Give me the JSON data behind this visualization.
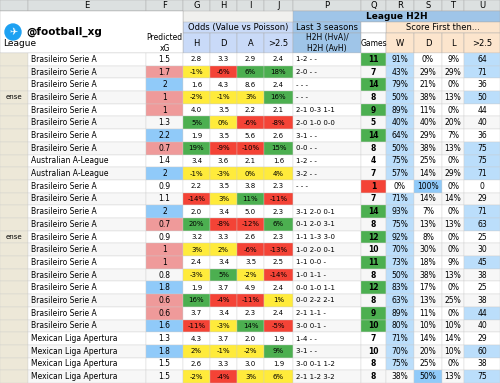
{
  "rows": [
    {
      "left_label": "",
      "league": "Brasileiro Serie A",
      "xg": "1.5",
      "H": "2.8",
      "D": "3.3",
      "A": "2.9",
      "g25": "2.4",
      "h2h": "1-2 - -",
      "games": "11",
      "W": "91%",
      "Dstat": "0%",
      "L": "9%",
      "g25stat": "64",
      "xg_bg": "white",
      "H_bg": "white",
      "D_bg": "white",
      "A_bg": "white",
      "g25_bg": "white",
      "games_bg": "#4caf50",
      "W_bg": "#bbdefb",
      "Ds_bg": "white",
      "L_bg": "white",
      "gs_bg": "#bbdefb"
    },
    {
      "left_label": "",
      "league": "Brasileiro Serie A",
      "xg": "1.7",
      "H": "-1%",
      "D": "-6%",
      "A": "6%",
      "g25": "18%",
      "h2h": "2-0 - -",
      "games": "7",
      "W": "43%",
      "Dstat": "29%",
      "L": "29%",
      "g25stat": "71",
      "xg_bg": "#ef9a9a",
      "H_bg": "#ffeb3b",
      "D_bg": "#f44336",
      "A_bg": "#4caf50",
      "g25_bg": "#4caf50",
      "games_bg": "white",
      "W_bg": "#bbdefb",
      "Ds_bg": "white",
      "L_bg": "white",
      "gs_bg": "#bbdefb"
    },
    {
      "left_label": "",
      "league": "Brasileiro Serie A",
      "xg": "2",
      "H": "1.6",
      "D": "4.3",
      "A": "8.6",
      "g25": "2.4",
      "h2h": "- - -",
      "games": "14",
      "W": "79%",
      "Dstat": "21%",
      "L": "0%",
      "g25stat": "36",
      "xg_bg": "#90caf9",
      "H_bg": "white",
      "D_bg": "white",
      "A_bg": "white",
      "g25_bg": "white",
      "games_bg": "#4caf50",
      "W_bg": "#bbdefb",
      "Ds_bg": "white",
      "L_bg": "white",
      "gs_bg": "white"
    },
    {
      "left_label": "ense",
      "league": "Brasileiro Serie A",
      "xg": "1",
      "H": "-2%",
      "D": "-1%",
      "A": "3%",
      "g25": "16%",
      "h2h": "- - -",
      "games": "8",
      "W": "50%",
      "Dstat": "38%",
      "L": "13%",
      "g25stat": "50",
      "xg_bg": "#ef9a9a",
      "H_bg": "#ffeb3b",
      "D_bg": "#ffeb3b",
      "A_bg": "#ffeb3b",
      "g25_bg": "#4caf50",
      "games_bg": "white",
      "W_bg": "#bbdefb",
      "Ds_bg": "white",
      "L_bg": "white",
      "gs_bg": "#bbdefb"
    },
    {
      "left_label": "",
      "league": "Brasileiro Serie A",
      "xg": "1",
      "H": "4.0",
      "D": "3.5",
      "A": "2.2",
      "g25": "2.1",
      "h2h": "2-1 0-3 1-1",
      "games": "9",
      "W": "89%",
      "Dstat": "11%",
      "L": "0%",
      "g25stat": "44",
      "xg_bg": "#ef9a9a",
      "H_bg": "white",
      "D_bg": "white",
      "A_bg": "white",
      "g25_bg": "white",
      "games_bg": "#4caf50",
      "W_bg": "#bbdefb",
      "Ds_bg": "white",
      "L_bg": "white",
      "gs_bg": "white"
    },
    {
      "left_label": "",
      "league": "Brasileiro Serie A",
      "xg": "1.3",
      "H": "5%",
      "D": "0%",
      "A": "-6%",
      "g25": "-8%",
      "h2h": "2-0 1-0 0-0",
      "games": "5",
      "W": "40%",
      "Dstat": "40%",
      "L": "20%",
      "g25stat": "40",
      "xg_bg": "white",
      "H_bg": "#4caf50",
      "D_bg": "#ffeb3b",
      "A_bg": "#f44336",
      "g25_bg": "#f44336",
      "games_bg": "white",
      "W_bg": "#bbdefb",
      "Ds_bg": "white",
      "L_bg": "white",
      "gs_bg": "white"
    },
    {
      "left_label": "",
      "league": "Brasileiro Serie A",
      "xg": "2.2",
      "H": "1.9",
      "D": "3.5",
      "A": "5.6",
      "g25": "2.6",
      "h2h": "3-1 - -",
      "games": "14",
      "W": "64%",
      "Dstat": "29%",
      "L": "7%",
      "g25stat": "36",
      "xg_bg": "#90caf9",
      "H_bg": "white",
      "D_bg": "white",
      "A_bg": "white",
      "g25_bg": "white",
      "games_bg": "#4caf50",
      "W_bg": "#bbdefb",
      "Ds_bg": "white",
      "L_bg": "white",
      "gs_bg": "white"
    },
    {
      "left_label": "",
      "league": "Brasileiro Serie A",
      "xg": "0.7",
      "H": "19%",
      "D": "-9%",
      "A": "-10%",
      "g25": "15%",
      "h2h": "0-0 - -",
      "games": "8",
      "W": "50%",
      "Dstat": "38%",
      "L": "13%",
      "g25stat": "75",
      "xg_bg": "#ef9a9a",
      "H_bg": "#4caf50",
      "D_bg": "#f44336",
      "A_bg": "#f44336",
      "g25_bg": "#4caf50",
      "games_bg": "white",
      "W_bg": "#bbdefb",
      "Ds_bg": "white",
      "L_bg": "white",
      "gs_bg": "#bbdefb"
    },
    {
      "left_label": "",
      "league": "Australian A-League",
      "xg": "1.4",
      "H": "3.4",
      "D": "3.6",
      "A": "2.1",
      "g25": "1.6",
      "h2h": "1-2 - -",
      "games": "4",
      "W": "75%",
      "Dstat": "25%",
      "L": "0%",
      "g25stat": "75",
      "xg_bg": "white",
      "H_bg": "white",
      "D_bg": "white",
      "A_bg": "white",
      "g25_bg": "white",
      "games_bg": "white",
      "W_bg": "#bbdefb",
      "Ds_bg": "white",
      "L_bg": "white",
      "gs_bg": "#bbdefb"
    },
    {
      "left_label": "",
      "league": "Australian A-League",
      "xg": "2",
      "H": "-1%",
      "D": "-3%",
      "A": "0%",
      "g25": "4%",
      "h2h": "3-2 - -",
      "games": "7",
      "W": "57%",
      "Dstat": "14%",
      "L": "29%",
      "g25stat": "71",
      "xg_bg": "#90caf9",
      "H_bg": "#ffeb3b",
      "D_bg": "#ffeb3b",
      "A_bg": "#ffeb3b",
      "g25_bg": "#ffeb3b",
      "games_bg": "white",
      "W_bg": "#bbdefb",
      "Ds_bg": "white",
      "L_bg": "white",
      "gs_bg": "#bbdefb"
    },
    {
      "left_label": "",
      "league": "Brasileiro Serie A",
      "xg": "0.9",
      "H": "2.2",
      "D": "3.5",
      "A": "3.8",
      "g25": "2.3",
      "h2h": "- - -",
      "games": "1",
      "W": "0%",
      "Dstat": "100%",
      "L": "0%",
      "g25stat": "0",
      "xg_bg": "white",
      "H_bg": "white",
      "D_bg": "white",
      "A_bg": "white",
      "g25_bg": "white",
      "games_bg": "#f44336",
      "W_bg": "white",
      "Ds_bg": "#90caf9",
      "L_bg": "white",
      "gs_bg": "white"
    },
    {
      "left_label": "",
      "league": "Brasileiro Serie A",
      "xg": "1.1",
      "H": "-14%",
      "D": "3%",
      "A": "11%",
      "g25": "-11%",
      "h2h": "",
      "games": "7",
      "W": "71%",
      "Dstat": "14%",
      "L": "14%",
      "g25stat": "29",
      "xg_bg": "white",
      "H_bg": "#f44336",
      "D_bg": "#ffeb3b",
      "A_bg": "#4caf50",
      "g25_bg": "#f44336",
      "games_bg": "white",
      "W_bg": "#bbdefb",
      "Ds_bg": "white",
      "L_bg": "white",
      "gs_bg": "white"
    },
    {
      "left_label": "",
      "league": "Brasileiro Serie A",
      "xg": "2",
      "H": "2.0",
      "D": "3.4",
      "A": "5.0",
      "g25": "2.3",
      "h2h": "3-1 2-0 0-1",
      "games": "14",
      "W": "93%",
      "Dstat": "7%",
      "L": "0%",
      "g25stat": "71",
      "xg_bg": "#90caf9",
      "H_bg": "white",
      "D_bg": "white",
      "A_bg": "white",
      "g25_bg": "white",
      "games_bg": "#4caf50",
      "W_bg": "#bbdefb",
      "Ds_bg": "white",
      "L_bg": "white",
      "gs_bg": "#bbdefb"
    },
    {
      "left_label": "",
      "league": "Brasileiro Serie A",
      "xg": "0.7",
      "H": "20%",
      "D": "-8%",
      "A": "-12%",
      "g25": "6%",
      "h2h": "0-1 2-0 3-1",
      "games": "8",
      "W": "75%",
      "Dstat": "13%",
      "L": "13%",
      "g25stat": "63",
      "xg_bg": "#ef9a9a",
      "H_bg": "#4caf50",
      "D_bg": "#f44336",
      "A_bg": "#f44336",
      "g25_bg": "#4caf50",
      "games_bg": "white",
      "W_bg": "#bbdefb",
      "Ds_bg": "white",
      "L_bg": "white",
      "gs_bg": "#bbdefb"
    },
    {
      "left_label": "ense",
      "league": "Brasileiro Serie A",
      "xg": "0.9",
      "H": "3.2",
      "D": "3.3",
      "A": "2.6",
      "g25": "2.3",
      "h2h": "1-1 1-3 3-0",
      "games": "12",
      "W": "92%",
      "Dstat": "8%",
      "L": "0%",
      "g25stat": "25",
      "xg_bg": "white",
      "H_bg": "white",
      "D_bg": "white",
      "A_bg": "white",
      "g25_bg": "white",
      "games_bg": "#4caf50",
      "W_bg": "#bbdefb",
      "Ds_bg": "white",
      "L_bg": "white",
      "gs_bg": "white"
    },
    {
      "left_label": "",
      "league": "Brasileiro Serie A",
      "xg": "1",
      "H": "3%",
      "D": "2%",
      "A": "-6%",
      "g25": "-13%",
      "h2h": "1-0 2-0 0-1",
      "games": "10",
      "W": "70%",
      "Dstat": "30%",
      "L": "0%",
      "g25stat": "30",
      "xg_bg": "#ef9a9a",
      "H_bg": "#ffeb3b",
      "D_bg": "#ffeb3b",
      "A_bg": "#f44336",
      "g25_bg": "#f44336",
      "games_bg": "white",
      "W_bg": "#bbdefb",
      "Ds_bg": "white",
      "L_bg": "white",
      "gs_bg": "white"
    },
    {
      "left_label": "",
      "league": "Brasileiro Serie A",
      "xg": "1",
      "H": "2.4",
      "D": "3.4",
      "A": "3.5",
      "g25": "2.5",
      "h2h": "1-1 0-0 -",
      "games": "11",
      "W": "73%",
      "Dstat": "18%",
      "L": "9%",
      "g25stat": "45",
      "xg_bg": "#ef9a9a",
      "H_bg": "white",
      "D_bg": "white",
      "A_bg": "white",
      "g25_bg": "white",
      "games_bg": "#4caf50",
      "W_bg": "#bbdefb",
      "Ds_bg": "white",
      "L_bg": "white",
      "gs_bg": "#bbdefb"
    },
    {
      "left_label": "",
      "league": "Brasileiro Serie A",
      "xg": "0.8",
      "H": "-3%",
      "D": "5%",
      "A": "-2%",
      "g25": "-14%",
      "h2h": "1-0 1-1 -",
      "games": "8",
      "W": "50%",
      "Dstat": "38%",
      "L": "13%",
      "g25stat": "38",
      "xg_bg": "white",
      "H_bg": "#ffeb3b",
      "D_bg": "#4caf50",
      "A_bg": "#ffeb3b",
      "g25_bg": "#f44336",
      "games_bg": "white",
      "W_bg": "#bbdefb",
      "Ds_bg": "white",
      "L_bg": "white",
      "gs_bg": "white"
    },
    {
      "left_label": "",
      "league": "Brasileiro Serie A",
      "xg": "1.8",
      "H": "1.9",
      "D": "3.7",
      "A": "4.9",
      "g25": "2.4",
      "h2h": "0-0 1-0 1-1",
      "games": "12",
      "W": "83%",
      "Dstat": "17%",
      "L": "0%",
      "g25stat": "25",
      "xg_bg": "#90caf9",
      "H_bg": "white",
      "D_bg": "white",
      "A_bg": "white",
      "g25_bg": "white",
      "games_bg": "#4caf50",
      "W_bg": "#bbdefb",
      "Ds_bg": "white",
      "L_bg": "white",
      "gs_bg": "white"
    },
    {
      "left_label": "",
      "league": "Brasileiro Serie A",
      "xg": "0.6",
      "H": "16%",
      "D": "-4%",
      "A": "-11%",
      "g25": "1%",
      "h2h": "0-0 2-2 2-1",
      "games": "8",
      "W": "63%",
      "Dstat": "13%",
      "L": "25%",
      "g25stat": "38",
      "xg_bg": "#ef9a9a",
      "H_bg": "#4caf50",
      "D_bg": "#f44336",
      "A_bg": "#f44336",
      "g25_bg": "#ffeb3b",
      "games_bg": "white",
      "W_bg": "#bbdefb",
      "Ds_bg": "white",
      "L_bg": "white",
      "gs_bg": "white"
    },
    {
      "left_label": "",
      "league": "Brasileiro Serie A",
      "xg": "0.6",
      "H": "3.7",
      "D": "3.4",
      "A": "2.3",
      "g25": "2.4",
      "h2h": "2-1 1-1 -",
      "games": "9",
      "W": "89%",
      "Dstat": "11%",
      "L": "0%",
      "g25stat": "44",
      "xg_bg": "#ef9a9a",
      "H_bg": "white",
      "D_bg": "white",
      "A_bg": "white",
      "g25_bg": "white",
      "games_bg": "#4caf50",
      "W_bg": "#bbdefb",
      "Ds_bg": "white",
      "L_bg": "white",
      "gs_bg": "#bbdefb"
    },
    {
      "left_label": "",
      "league": "Brasileiro Serie A",
      "xg": "1.6",
      "H": "-11%",
      "D": "-3%",
      "A": "14%",
      "g25": "-5%",
      "h2h": "3-0 0-1 -",
      "games": "10",
      "W": "80%",
      "Dstat": "10%",
      "L": "10%",
      "g25stat": "40",
      "xg_bg": "#90caf9",
      "H_bg": "#f44336",
      "D_bg": "#ffeb3b",
      "A_bg": "#4caf50",
      "g25_bg": "#f44336",
      "games_bg": "#4caf50",
      "W_bg": "#bbdefb",
      "Ds_bg": "white",
      "L_bg": "white",
      "gs_bg": "white"
    },
    {
      "left_label": "",
      "league": "Mexican Liga Apertura",
      "xg": "1.3",
      "H": "4.3",
      "D": "3.7",
      "A": "2.0",
      "g25": "1.9",
      "h2h": "1-4 - -",
      "games": "7",
      "W": "71%",
      "Dstat": "14%",
      "L": "14%",
      "g25stat": "29",
      "xg_bg": "white",
      "H_bg": "white",
      "D_bg": "white",
      "A_bg": "white",
      "g25_bg": "white",
      "games_bg": "white",
      "W_bg": "#bbdefb",
      "Ds_bg": "white",
      "L_bg": "white",
      "gs_bg": "white"
    },
    {
      "left_label": "",
      "league": "Mexican Liga Apertura",
      "xg": "1.8",
      "H": "2%",
      "D": "-1%",
      "A": "-2%",
      "g25": "9%",
      "h2h": "3-1 - -",
      "games": "10",
      "W": "70%",
      "Dstat": "20%",
      "L": "10%",
      "g25stat": "60",
      "xg_bg": "#90caf9",
      "H_bg": "#ffeb3b",
      "D_bg": "#ffeb3b",
      "A_bg": "#ffeb3b",
      "g25_bg": "#4caf50",
      "games_bg": "white",
      "W_bg": "#bbdefb",
      "Ds_bg": "white",
      "L_bg": "white",
      "gs_bg": "#bbdefb"
    },
    {
      "left_label": "",
      "league": "Mexican Liga Apertura",
      "xg": "1.5",
      "H": "2.6",
      "D": "3.3",
      "A": "3.0",
      "g25": "1.9",
      "h2h": "3-0 0-1 1-2",
      "games": "8",
      "W": "75%",
      "Dstat": "25%",
      "L": "0%",
      "g25stat": "38",
      "xg_bg": "white",
      "H_bg": "white",
      "D_bg": "white",
      "A_bg": "white",
      "g25_bg": "white",
      "games_bg": "white",
      "W_bg": "#bbdefb",
      "Ds_bg": "white",
      "L_bg": "white",
      "gs_bg": "white"
    },
    {
      "left_label": "",
      "league": "Mexican Liga Apertura",
      "xg": "1.5",
      "H": "-2%",
      "D": "-4%",
      "A": "3%",
      "g25": "6%",
      "h2h": "2-1 1-2 3-2",
      "games": "8",
      "W": "38%",
      "Dstat": "50%",
      "L": "13%",
      "g25stat": "75",
      "xg_bg": "white",
      "H_bg": "#ffeb3b",
      "D_bg": "#f44336",
      "A_bg": "#ffeb3b",
      "g25_bg": "#ffeb3b",
      "games_bg": "white",
      "W_bg": "white",
      "Ds_bg": "#90caf9",
      "L_bg": "white",
      "gs_bg": "#bbdefb"
    }
  ],
  "col_letters": {
    "left": "",
    "league": "E",
    "xg": "F",
    "H": "G",
    "D": "H",
    "A": "I",
    "g25": "J",
    "h2h": "P",
    "games": "Q",
    "W": "R",
    "Dstat": "S",
    "L": "T",
    "g25stat": "U"
  },
  "bg_main": "#f0f0ee",
  "bg_letter_row": "#dce0e0",
  "bg_twitter": "#ffffff",
  "bg_yellow_header": "#fef9e0",
  "bg_odds_header": "#c9daf8",
  "bg_h2h_header": "#9fc5e8",
  "bg_score_header": "#fce5cd",
  "twitter_handle": "@football_xg",
  "twitter_color": "#1da1f2"
}
